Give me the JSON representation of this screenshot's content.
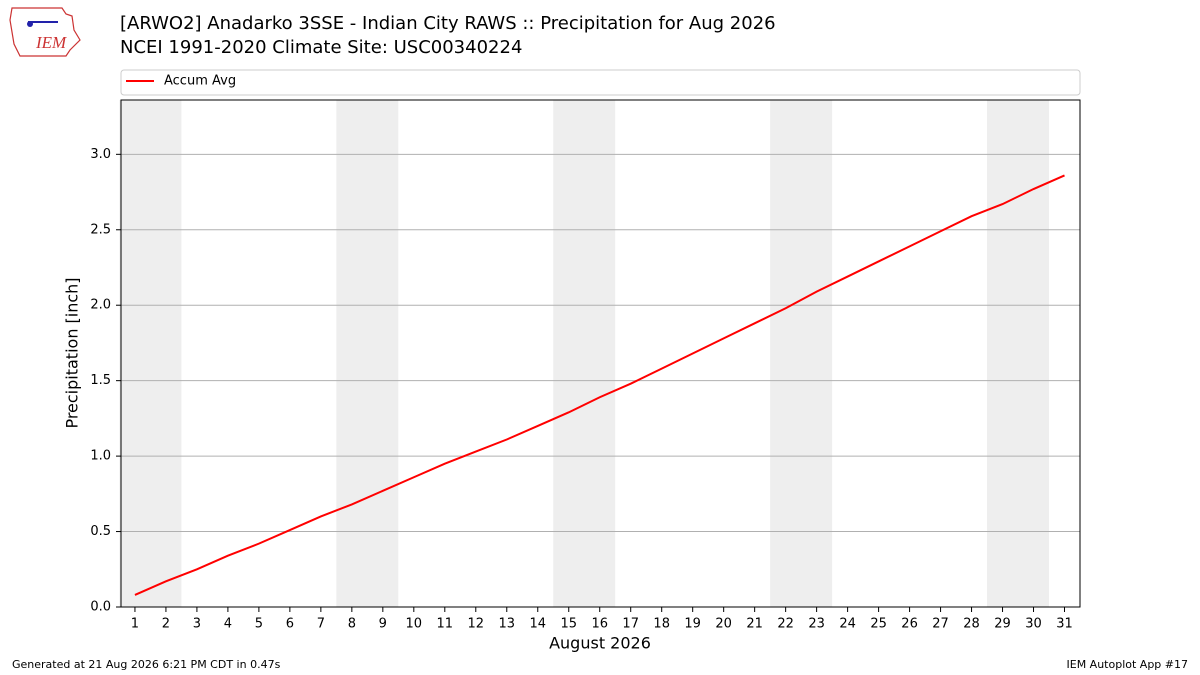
{
  "chart_data": {
    "type": "line",
    "logo_text": "IEM",
    "title": "[ARWO2] Anadarko 3SSE - Indian City RAWS :: Precipitation for Aug 2026",
    "subtitle": "NCEI 1991-2020 Climate Site: USC00340224",
    "x_label": "August 2026",
    "y_label": "Precipitation [inch]",
    "footer_left": "Generated at 21 Aug 2026 6:21 PM CDT in 0.47s",
    "footer_right": "IEM Autoplot App #17",
    "legend": "top",
    "grid": "y",
    "shaded_ranges": [
      [
        0.5,
        2.5
      ],
      [
        7.5,
        9.5
      ],
      [
        14.5,
        16.5
      ],
      [
        21.5,
        23.5
      ],
      [
        28.5,
        30.5
      ]
    ],
    "shade_color": "#eeeeee",
    "x": [
      1,
      2,
      3,
      4,
      5,
      6,
      7,
      8,
      9,
      10,
      11,
      12,
      13,
      14,
      15,
      16,
      17,
      18,
      19,
      20,
      21,
      22,
      23,
      24,
      25,
      26,
      27,
      28,
      29,
      30,
      31
    ],
    "series": [
      {
        "name": "Accum Avg",
        "color": "#ff0000",
        "values": [
          0.08,
          0.17,
          0.25,
          0.34,
          0.42,
          0.51,
          0.6,
          0.68,
          0.77,
          0.86,
          0.95,
          1.03,
          1.11,
          1.2,
          1.29,
          1.39,
          1.48,
          1.58,
          1.68,
          1.78,
          1.88,
          1.98,
          2.09,
          2.19,
          2.29,
          2.39,
          2.49,
          2.59,
          2.67,
          2.77,
          2.86
        ]
      }
    ],
    "xlim": [
      0.55,
      31.5
    ],
    "xticks": [
      1,
      2,
      3,
      4,
      5,
      6,
      7,
      8,
      9,
      10,
      11,
      12,
      13,
      14,
      15,
      16,
      17,
      18,
      19,
      20,
      21,
      22,
      23,
      24,
      25,
      26,
      27,
      28,
      29,
      30,
      31
    ],
    "ylim": [
      0,
      3.36
    ],
    "yticks": [
      {
        "value": 0,
        "label": "0.0"
      },
      0.5,
      {
        "value": 1,
        "label": "1.0"
      },
      1.5,
      {
        "value": 2,
        "label": "2.0"
      },
      2.5,
      {
        "value": 3,
        "label": "3.0"
      }
    ]
  }
}
